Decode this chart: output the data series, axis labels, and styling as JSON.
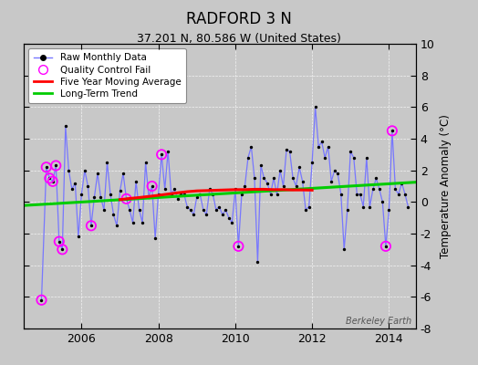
{
  "title": "RADFORD 3 N",
  "subtitle": "37.201 N, 80.586 W (United States)",
  "ylabel": "Temperature Anomaly (°C)",
  "watermark": "Berkeley Earth",
  "ylim": [
    -8,
    10
  ],
  "xlim": [
    2004.5,
    2014.7
  ],
  "xticks": [
    2006,
    2008,
    2010,
    2012,
    2014
  ],
  "yticks": [
    -8,
    -6,
    -4,
    -2,
    0,
    2,
    4,
    6,
    8,
    10
  ],
  "bg_color": "#c8c8c8",
  "plot_bg_color": "#c8c8c8",
  "raw_data": {
    "x": [
      2004.958,
      2005.083,
      2005.167,
      2005.25,
      2005.333,
      2005.417,
      2005.5,
      2005.583,
      2005.667,
      2005.75,
      2005.833,
      2005.917,
      2006.0,
      2006.083,
      2006.167,
      2006.25,
      2006.333,
      2006.417,
      2006.5,
      2006.583,
      2006.667,
      2006.75,
      2006.833,
      2006.917,
      2007.0,
      2007.083,
      2007.167,
      2007.25,
      2007.333,
      2007.417,
      2007.5,
      2007.583,
      2007.667,
      2007.75,
      2007.833,
      2007.917,
      2008.0,
      2008.083,
      2008.167,
      2008.25,
      2008.333,
      2008.417,
      2008.5,
      2008.583,
      2008.667,
      2008.75,
      2008.833,
      2008.917,
      2009.0,
      2009.083,
      2009.167,
      2009.25,
      2009.333,
      2009.417,
      2009.5,
      2009.583,
      2009.667,
      2009.75,
      2009.833,
      2009.917,
      2010.0,
      2010.083,
      2010.167,
      2010.25,
      2010.333,
      2010.417,
      2010.5,
      2010.583,
      2010.667,
      2010.75,
      2010.833,
      2010.917,
      2011.0,
      2011.083,
      2011.167,
      2011.25,
      2011.333,
      2011.417,
      2011.5,
      2011.583,
      2011.667,
      2011.75,
      2011.833,
      2011.917,
      2012.0,
      2012.083,
      2012.167,
      2012.25,
      2012.333,
      2012.417,
      2012.5,
      2012.583,
      2012.667,
      2012.75,
      2012.833,
      2012.917,
      2013.0,
      2013.083,
      2013.167,
      2013.25,
      2013.333,
      2013.417,
      2013.5,
      2013.583,
      2013.667,
      2013.75,
      2013.833,
      2013.917,
      2014.0,
      2014.083,
      2014.167,
      2014.25,
      2014.333,
      2014.417,
      2014.5
    ],
    "y": [
      -6.2,
      2.2,
      1.5,
      1.3,
      2.3,
      -2.5,
      -3.0,
      4.8,
      2.0,
      0.8,
      1.2,
      -2.2,
      0.5,
      2.0,
      1.0,
      -1.5,
      0.3,
      1.8,
      0.3,
      -0.5,
      2.5,
      0.5,
      -0.8,
      -1.5,
      0.7,
      1.8,
      0.2,
      -0.5,
      -1.3,
      1.3,
      -0.5,
      -1.3,
      2.5,
      0.3,
      1.0,
      -2.3,
      0.5,
      3.0,
      0.8,
      3.2,
      0.5,
      0.8,
      0.2,
      0.5,
      0.5,
      -0.3,
      -0.5,
      -0.8,
      0.3,
      0.5,
      -0.5,
      -0.8,
      0.8,
      0.5,
      -0.5,
      -0.3,
      -0.8,
      -0.5,
      -1.0,
      -1.3,
      0.8,
      -2.8,
      0.5,
      1.0,
      2.8,
      3.5,
      1.5,
      -3.8,
      2.3,
      1.5,
      1.2,
      0.5,
      1.5,
      0.5,
      2.0,
      1.0,
      3.3,
      3.2,
      1.5,
      1.0,
      2.2,
      1.3,
      -0.5,
      -0.3,
      2.5,
      6.0,
      3.5,
      3.8,
      2.8,
      3.5,
      1.3,
      2.0,
      1.8,
      0.5,
      -3.0,
      -0.5,
      3.2,
      2.8,
      0.5,
      0.5,
      -0.3,
      2.8,
      -0.3,
      0.8,
      1.5,
      0.8,
      0.0,
      -2.8,
      -0.5,
      4.5,
      0.8,
      0.5,
      1.2,
      0.5,
      -0.3
    ]
  },
  "qc_fail_points": {
    "x": [
      2004.958,
      2005.083,
      2005.167,
      2005.25,
      2005.333,
      2005.417,
      2005.5,
      2006.25,
      2007.167,
      2007.833,
      2008.083,
      2010.083,
      2013.917,
      2014.083
    ],
    "y": [
      -6.2,
      2.2,
      1.5,
      1.3,
      2.3,
      -2.5,
      -3.0,
      -1.5,
      0.2,
      1.0,
      3.0,
      -2.8,
      -2.8,
      4.5
    ]
  },
  "moving_avg": {
    "x": [
      2007.0,
      2007.25,
      2007.5,
      2007.75,
      2008.0,
      2008.25,
      2008.5,
      2008.75,
      2009.0,
      2009.25,
      2009.5,
      2009.75,
      2010.0,
      2010.25,
      2010.5,
      2010.75,
      2011.0,
      2011.25,
      2011.5,
      2011.75,
      2012.0
    ],
    "y": [
      0.15,
      0.22,
      0.28,
      0.35,
      0.42,
      0.5,
      0.58,
      0.65,
      0.7,
      0.72,
      0.74,
      0.76,
      0.78,
      0.78,
      0.8,
      0.8,
      0.78,
      0.78,
      0.76,
      0.76,
      0.75
    ]
  },
  "trend": {
    "x": [
      2004.5,
      2014.7
    ],
    "y": [
      -0.22,
      1.25
    ]
  },
  "line_color": "#7777ff",
  "dot_color": "#000000",
  "qc_color": "#ff00ff",
  "moving_avg_color": "#ff0000",
  "trend_color": "#00cc00",
  "grid_color": "#ffffff",
  "spine_color": "#000000"
}
